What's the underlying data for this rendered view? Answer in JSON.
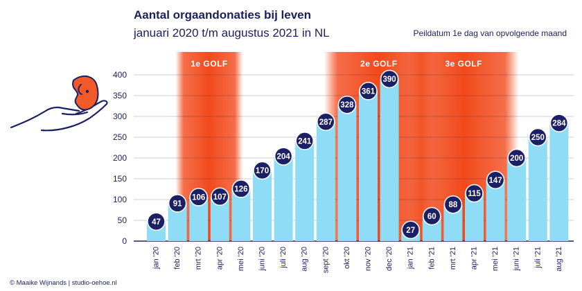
{
  "header": {
    "title": "Aantal orgaandonaties bij leven",
    "subtitle": "januari 2020 t/m augustus 2021 in NL",
    "note": "Peildatum 1e dag van opvolgende maand"
  },
  "footer": {
    "credit": "© Maaike Wijnands | studio-oehoe.nl"
  },
  "icons": {
    "logo": "hand-holding-kidney-icon"
  },
  "colors": {
    "bar": "#8fdcf6",
    "marker": "#1b1f63",
    "wave": "#f24a1c",
    "text": "#1a1f5e",
    "grid": "#1a1f5e",
    "kidney": "#f05a28"
  },
  "chart_data": {
    "type": "bar",
    "categories": [
      "jan '20",
      "feb '20",
      "mrt '20",
      "apr '20",
      "mei '20",
      "juni '20",
      "juli '20",
      "aug '20",
      "sept '20",
      "okt '20",
      "nov '20",
      "dec '20",
      "jan '21",
      "feb '21",
      "mrt '21",
      "apr '21",
      "mei '21",
      "juni '21",
      "juli '21",
      "aug '21"
    ],
    "values": [
      47,
      91,
      106,
      107,
      126,
      170,
      204,
      241,
      287,
      328,
      361,
      390,
      27,
      60,
      88,
      115,
      147,
      200,
      250,
      284
    ],
    "ylim": [
      0,
      400
    ],
    "yticks": [
      0,
      50,
      100,
      150,
      200,
      250,
      300,
      350,
      400
    ],
    "grid": "horizontal",
    "bands": [
      {
        "label": "1e GOLF",
        "start": "mrt '20",
        "end": "apr '20"
      },
      {
        "label": "2e GOLF",
        "start": "okt '20",
        "end": "jan '21"
      },
      {
        "label": "3e GOLF",
        "start": "feb '21",
        "end": "mei '21"
      }
    ]
  }
}
